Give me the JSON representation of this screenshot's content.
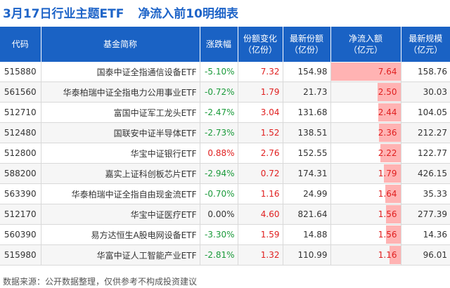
{
  "title": "3月17日行业主题ETF",
  "subtitle": "净流入前10明细表",
  "headers": {
    "code": "代码",
    "name": "基金简称",
    "change": "涨跌幅",
    "share_change_1": "份额变化",
    "share_change_2": "（亿份）",
    "latest_share_1": "最新份额",
    "latest_share_2": "（亿份）",
    "net_inflow_1": "净流入额",
    "net_inflow_2": "（亿元）",
    "scale_1": "最新规模",
    "scale_2": "（亿元）"
  },
  "rows": [
    {
      "code": "515880",
      "name": "国泰中证全指通信设备ETF",
      "change": "-5.10%",
      "change_dir": "neg",
      "share_change": "7.32",
      "latest_share": "154.98",
      "net_inflow": "7.64",
      "net_inflow_value": 7.64,
      "scale": "158.76"
    },
    {
      "code": "561560",
      "name": "华泰柏瑞中证全指电力公用事业ETF",
      "change": "-0.72%",
      "change_dir": "neg",
      "share_change": "1.79",
      "latest_share": "21.73",
      "net_inflow": "2.50",
      "net_inflow_value": 2.5,
      "scale": "30.03"
    },
    {
      "code": "512710",
      "name": "富国中证军工龙头ETF",
      "change": "-2.47%",
      "change_dir": "neg",
      "share_change": "3.04",
      "latest_share": "131.68",
      "net_inflow": "2.44",
      "net_inflow_value": 2.44,
      "scale": "104.05"
    },
    {
      "code": "512480",
      "name": "国联安中证半导体ETF",
      "change": "-2.73%",
      "change_dir": "neg",
      "share_change": "1.52",
      "latest_share": "138.51",
      "net_inflow": "2.36",
      "net_inflow_value": 2.36,
      "scale": "212.27"
    },
    {
      "code": "512800",
      "name": "华宝中证银行ETF",
      "change": "0.88%",
      "change_dir": "pos",
      "share_change": "2.76",
      "latest_share": "152.55",
      "net_inflow": "2.22",
      "net_inflow_value": 2.22,
      "scale": "122.77"
    },
    {
      "code": "588200",
      "name": "嘉实上证科创板芯片ETF",
      "change": "-2.94%",
      "change_dir": "neg",
      "share_change": "0.72",
      "latest_share": "174.31",
      "net_inflow": "1.79",
      "net_inflow_value": 1.79,
      "scale": "426.15"
    },
    {
      "code": "563390",
      "name": "华泰柏瑞中证全指自由现金流ETF",
      "change": "-0.70%",
      "change_dir": "neg",
      "share_change": "1.16",
      "latest_share": "24.99",
      "net_inflow": "1.64",
      "net_inflow_value": 1.64,
      "scale": "35.33"
    },
    {
      "code": "512170",
      "name": "华宝中证医疗ETF",
      "change": "0.00%",
      "change_dir": "flat",
      "share_change": "4.60",
      "latest_share": "821.64",
      "net_inflow": "1.56",
      "net_inflow_value": 1.56,
      "scale": "277.39"
    },
    {
      "code": "560390",
      "name": "易方达恒生A股电网设备ETF",
      "change": "-3.30%",
      "change_dir": "neg",
      "share_change": "1.59",
      "latest_share": "14.88",
      "net_inflow": "1.56",
      "net_inflow_value": 1.56,
      "scale": "14.36"
    },
    {
      "code": "515980",
      "name": "华富中证人工智能产业ETF",
      "change": "-2.81%",
      "change_dir": "neg",
      "share_change": "1.32",
      "latest_share": "110.99",
      "net_inflow": "1.16",
      "net_inflow_value": 1.16,
      "scale": "96.01"
    }
  ],
  "footer": "数据来源：公开数据整理，仅供参考不构成投资建议",
  "colors": {
    "header_bg": "#1a62c4",
    "title": "#1e64c8",
    "negative": "#1a9a3a",
    "positive": "#e02020",
    "bar": "#ffb3b3"
  }
}
